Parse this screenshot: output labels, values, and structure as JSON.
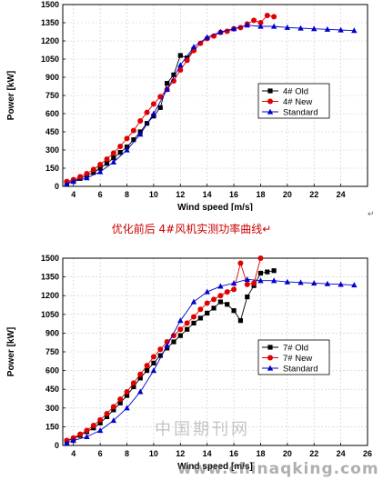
{
  "caption": "优化前后 4#风机实测功率曲线↵",
  "paragraph_mark": "↵",
  "watermark": {
    "cn": "中国期刊网",
    "url": "www.chinaqking.com"
  },
  "chart_data": [
    {
      "type": "line",
      "title": "",
      "xlabel": "Wind speed [m/s]",
      "ylabel": "Power [kW]",
      "xlim": [
        3.2,
        26
      ],
      "ylim": [
        0,
        1500
      ],
      "xticks": [
        4,
        6,
        8,
        10,
        12,
        14,
        16,
        18,
        20,
        22,
        24,
        26
      ],
      "xtick_labels": [
        "4",
        "6",
        "8",
        "10",
        "12",
        "14",
        "16",
        "18",
        "20",
        "22",
        "24",
        ""
      ],
      "yticks": [
        0,
        150,
        300,
        450,
        600,
        750,
        900,
        1050,
        1200,
        1350,
        1500
      ],
      "ytick_labels": [
        "0",
        "150",
        "300",
        "450",
        "600",
        "750",
        "900",
        "1050",
        "1200",
        "1350",
        "1500"
      ],
      "grid": true,
      "legend": "center-right",
      "series": [
        {
          "name": "4# Old",
          "color": "#000000",
          "marker": "square",
          "x": [
            3.5,
            4,
            4.5,
            5,
            5.5,
            6,
            6.5,
            7,
            7.5,
            8,
            8.5,
            9,
            9.5,
            10,
            10.5,
            11,
            11.5,
            12,
            12.5,
            13
          ],
          "y": [
            30,
            45,
            65,
            90,
            115,
            150,
            190,
            235,
            280,
            325,
            385,
            450,
            520,
            580,
            650,
            850,
            920,
            1080,
            1060,
            1130
          ]
        },
        {
          "name": "4# New",
          "color": "#e00000",
          "marker": "circle",
          "x": [
            3.5,
            4,
            4.5,
            5,
            5.5,
            6,
            6.5,
            7,
            7.5,
            8,
            8.5,
            9,
            9.5,
            10,
            10.5,
            11,
            11.5,
            12,
            12.5,
            13,
            13.5,
            14,
            14.5,
            15,
            15.5,
            16,
            16.5,
            17,
            17.5,
            18,
            18.5,
            19
          ],
          "y": [
            40,
            55,
            80,
            105,
            140,
            180,
            225,
            275,
            330,
            395,
            460,
            540,
            610,
            680,
            740,
            800,
            870,
            960,
            1040,
            1120,
            1180,
            1220,
            1240,
            1270,
            1280,
            1300,
            1310,
            1340,
            1370,
            1350,
            1410,
            1400
          ]
        },
        {
          "name": "Standard",
          "color": "#0000cc",
          "marker": "triangle",
          "x": [
            3.5,
            4,
            5,
            6,
            7,
            8,
            9,
            10,
            11,
            12,
            13,
            14,
            15,
            16,
            17,
            18,
            19,
            20,
            21,
            22,
            23,
            24,
            25
          ],
          "y": [
            20,
            40,
            70,
            120,
            200,
            300,
            430,
            600,
            800,
            1000,
            1150,
            1230,
            1275,
            1300,
            1330,
            1320,
            1320,
            1310,
            1305,
            1300,
            1295,
            1290,
            1285
          ]
        }
      ]
    },
    {
      "type": "line",
      "title": "",
      "xlabel": "Wind speed [m/s]",
      "ylabel": "Power [kW]",
      "xlim": [
        3.2,
        26
      ],
      "ylim": [
        0,
        1500
      ],
      "xticks": [
        4,
        6,
        8,
        10,
        12,
        14,
        16,
        18,
        20,
        22,
        24,
        26
      ],
      "xtick_labels": [
        "4",
        "6",
        "8",
        "10",
        "12",
        "14",
        "16",
        "18",
        "20",
        "22",
        "24",
        "26"
      ],
      "yticks": [
        0,
        150,
        300,
        450,
        600,
        750,
        900,
        1050,
        1200,
        1350,
        1500
      ],
      "ytick_labels": [
        "0",
        "150",
        "300",
        "450",
        "600",
        "750",
        "900",
        "1050",
        "1200",
        "1350",
        "1500"
      ],
      "grid": true,
      "legend": "center-right",
      "series": [
        {
          "name": "7# Old",
          "color": "#000000",
          "marker": "square",
          "x": [
            3.5,
            4,
            4.5,
            5,
            5.5,
            6,
            6.5,
            7,
            7.5,
            8,
            8.5,
            9,
            9.5,
            10,
            10.5,
            11,
            11.5,
            12,
            12.5,
            13,
            13.5,
            14,
            14.5,
            15,
            15.5,
            16,
            16.5,
            17,
            17.5,
            18,
            18.5,
            19
          ],
          "y": [
            35,
            55,
            80,
            110,
            140,
            180,
            230,
            285,
            340,
            400,
            470,
            540,
            600,
            660,
            720,
            780,
            830,
            880,
            930,
            980,
            1020,
            1060,
            1100,
            1150,
            1130,
            1080,
            1000,
            1190,
            1280,
            1380,
            1390,
            1400
          ]
        },
        {
          "name": "7# New",
          "color": "#e00000",
          "marker": "circle",
          "x": [
            3.5,
            4,
            4.5,
            5,
            5.5,
            6,
            6.5,
            7,
            7.5,
            8,
            8.5,
            9,
            9.5,
            10,
            10.5,
            11,
            11.5,
            12,
            12.5,
            13,
            13.5,
            14,
            14.5,
            15,
            15.5,
            16,
            16.5,
            17,
            17.5,
            18
          ],
          "y": [
            40,
            60,
            90,
            120,
            160,
            205,
            255,
            310,
            370,
            430,
            500,
            570,
            640,
            710,
            770,
            830,
            880,
            930,
            980,
            1030,
            1090,
            1140,
            1170,
            1200,
            1230,
            1250,
            1460,
            1290,
            1300,
            1500
          ]
        },
        {
          "name": "Standard",
          "color": "#0000cc",
          "marker": "triangle",
          "x": [
            3.5,
            4,
            5,
            6,
            7,
            8,
            9,
            10,
            11,
            12,
            13,
            14,
            15,
            16,
            17,
            18,
            19,
            20,
            21,
            22,
            23,
            24,
            25
          ],
          "y": [
            20,
            40,
            70,
            120,
            200,
            300,
            430,
            600,
            800,
            1000,
            1150,
            1230,
            1275,
            1300,
            1330,
            1320,
            1320,
            1310,
            1305,
            1300,
            1295,
            1290,
            1285
          ]
        }
      ]
    }
  ]
}
